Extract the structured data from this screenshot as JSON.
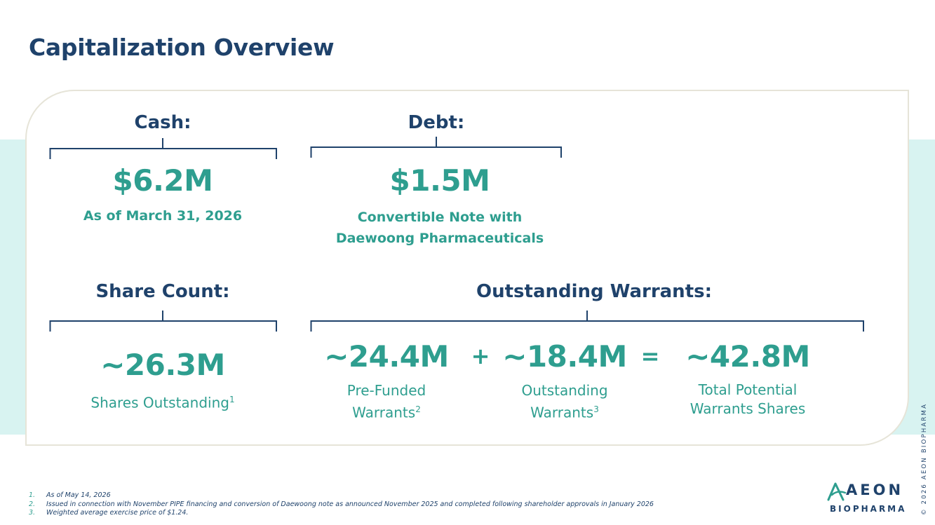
{
  "title": "Capitalization Overview",
  "cash": {
    "heading": "Cash:",
    "value": "$6.2M",
    "caption": "As of March 31, 2026"
  },
  "debt": {
    "heading": "Debt:",
    "value": "$1.5M",
    "caption_line1": "Convertible Note with",
    "caption_line2": "Daewoong Pharmaceuticals"
  },
  "shares": {
    "heading": "Share Count:",
    "value": "~26.3M",
    "caption": "Shares Outstanding",
    "footnote_ref": "1"
  },
  "warrants": {
    "heading": "Outstanding Warrants:",
    "prefunded": {
      "value": "~24.4M",
      "line1": "Pre-Funded",
      "line2": "Warrants",
      "footnote_ref": "2"
    },
    "plus": "+",
    "outstanding": {
      "value": "~18.4M",
      "line1": "Outstanding",
      "line2": "Warrants",
      "footnote_ref": "3"
    },
    "equals": "=",
    "total": {
      "value": "~42.8M",
      "line1": "Total Potential",
      "line2": "Warrants Shares"
    }
  },
  "footnotes": [
    {
      "num": "1.",
      "text": "As of May 14, 2026"
    },
    {
      "num": "2.",
      "text": "Issued in connection with November PIPE financing and conversion of Daewoong note as announced November 2025 and completed following shareholder approvals in January 2026"
    },
    {
      "num": "3.",
      "text": "Weighted average exercise price of $1.24."
    }
  ],
  "logo": {
    "word": "AEON",
    "sub": "BIOPHARMA"
  },
  "copyright": "© 2026 AEON BIOPHARMA",
  "colors": {
    "navy": "#1f426b",
    "teal": "#2e9e8f",
    "band": "#d8f3f1"
  }
}
